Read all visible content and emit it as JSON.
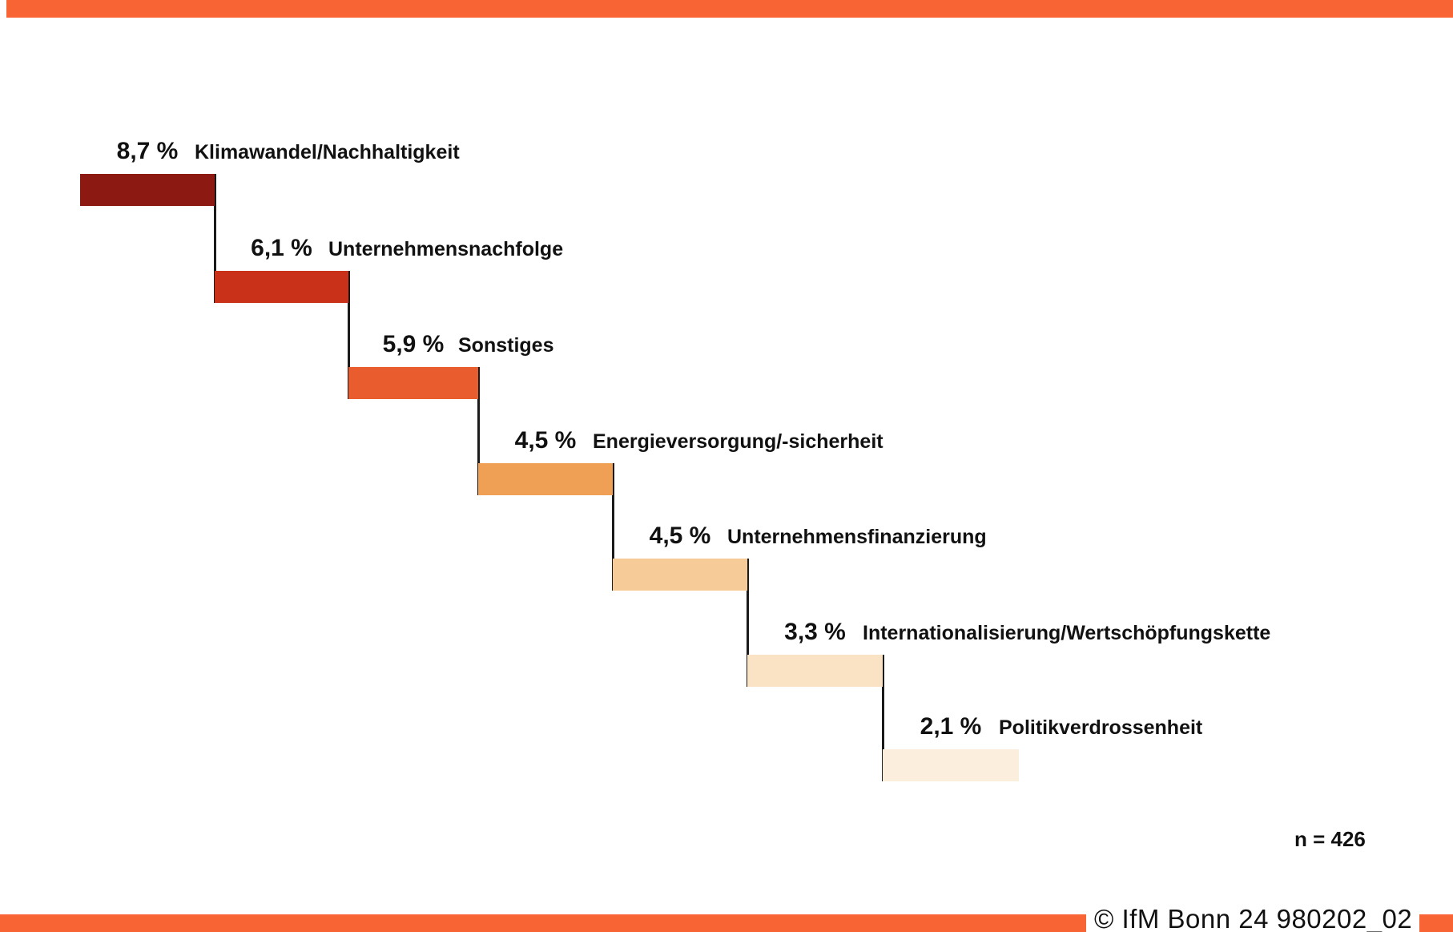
{
  "page": {
    "accent_color": "#F96434",
    "background": "#ffffff"
  },
  "chart_data": {
    "type": "bar",
    "variant": "waterfall-step-descending",
    "title": "",
    "unit": "%",
    "categories": [
      "Klimawandel/Nachhaltigkeit",
      "Unternehmensnachfolge",
      "Sonstiges",
      "Energieversorgung/-sicherheit",
      "Unternehmensfinanzierung",
      "Internationalisierung/Wertschöpfungskette",
      "Politikverdrossenheit"
    ],
    "values": [
      8.7,
      6.1,
      5.9,
      4.5,
      4.5,
      3.3,
      2.1
    ],
    "value_labels": [
      "8,7 %",
      "6,1 %",
      "5,9 %",
      "4,5 %",
      "4,5 %",
      "3,3 %",
      "2,1 %"
    ],
    "bar_colors": [
      "#8C1A12",
      "#C93219",
      "#E95C2E",
      "#F0A055",
      "#F6CB97",
      "#FAE2C4",
      "#FBEEDC"
    ],
    "connector_color": "#1a1a1a",
    "legend": "none",
    "grid": "off",
    "sample_size_label": "n = 426"
  },
  "footer": {
    "copyright": "© IfM Bonn 24 980202_02"
  }
}
